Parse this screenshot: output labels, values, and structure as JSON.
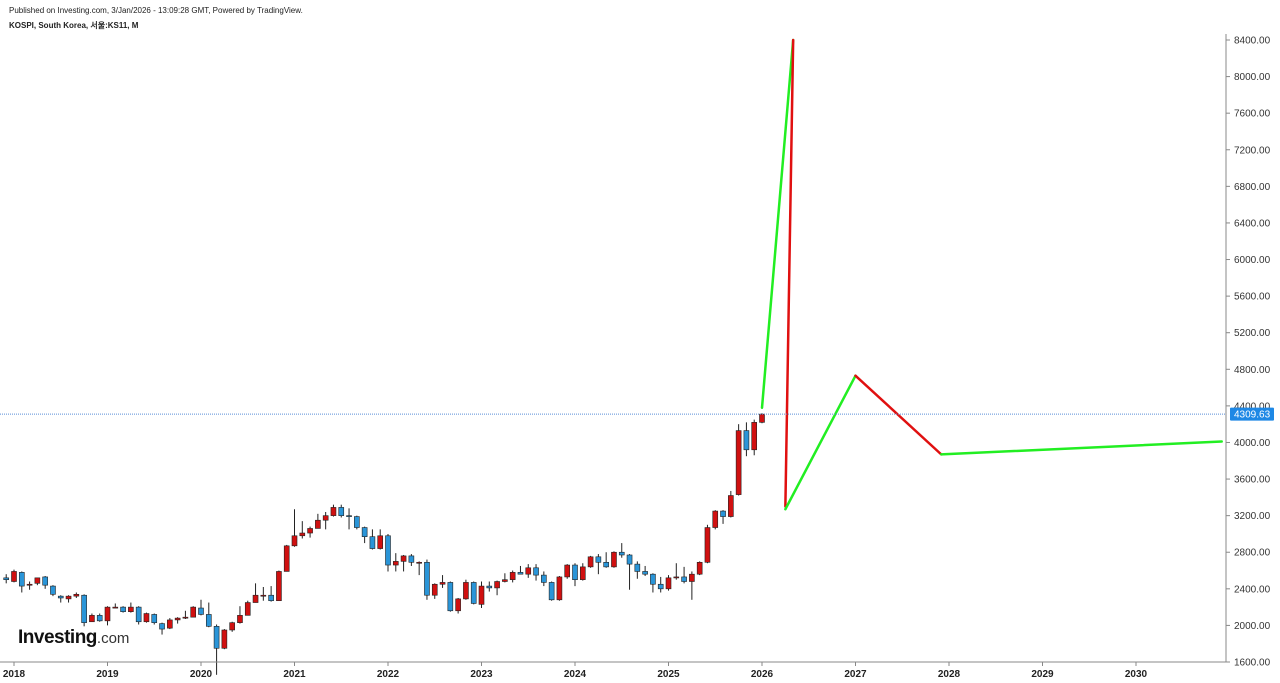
{
  "header": {
    "published": "Published on Investing.com, 3/Jan/2026 - 13:09:28 GMT, Powered by TradingView.",
    "symbol": "KOSPI, South Korea, 서울:KS11, M"
  },
  "logo": {
    "main": "Investing",
    "tld": ".com"
  },
  "colors": {
    "up": "#d01010",
    "down": "#2a95d8",
    "proj_up": "#22ee22",
    "proj_down": "#e01010",
    "last_price_bg": "#1e88e5"
  },
  "chart_data": {
    "type": "candlestick",
    "title": "KOSPI, South Korea, 서울:KS11, M",
    "interval": "M",
    "ylim": [
      1600,
      8500
    ],
    "y_ticks": [
      "1600.00",
      "2000.00",
      "2400.00",
      "2800.00",
      "3200.00",
      "3600.00",
      "4000.00",
      "4400.00",
      "4800.00",
      "5200.00",
      "5600.00",
      "6000.00",
      "6400.00",
      "6800.00",
      "7200.00",
      "7600.00",
      "8000.00",
      "8400.00"
    ],
    "x_ticks": [
      "2018",
      "2019",
      "2020",
      "2021",
      "2022",
      "2023",
      "2024",
      "2025",
      "2026",
      "2027",
      "2028",
      "2029",
      "2030"
    ],
    "last_price": "4309.63",
    "grid": false,
    "candles": [
      {
        "date": "2017-12",
        "o": 2520,
        "h": 2560,
        "l": 2460,
        "c": 2500
      },
      {
        "date": "2018-01",
        "o": 2480,
        "h": 2610,
        "l": 2470,
        "c": 2590
      },
      {
        "date": "2018-02",
        "o": 2580,
        "h": 2590,
        "l": 2360,
        "c": 2430
      },
      {
        "date": "2018-03",
        "o": 2440,
        "h": 2480,
        "l": 2390,
        "c": 2450
      },
      {
        "date": "2018-04",
        "o": 2460,
        "h": 2520,
        "l": 2440,
        "c": 2520
      },
      {
        "date": "2018-05",
        "o": 2530,
        "h": 2540,
        "l": 2400,
        "c": 2440
      },
      {
        "date": "2018-06",
        "o": 2430,
        "h": 2440,
        "l": 2320,
        "c": 2340
      },
      {
        "date": "2018-07",
        "o": 2320,
        "h": 2330,
        "l": 2250,
        "c": 2300
      },
      {
        "date": "2018-08",
        "o": 2290,
        "h": 2330,
        "l": 2250,
        "c": 2320
      },
      {
        "date": "2018-09",
        "o": 2320,
        "h": 2360,
        "l": 2300,
        "c": 2340
      },
      {
        "date": "2018-10",
        "o": 2330,
        "h": 2340,
        "l": 1990,
        "c": 2030
      },
      {
        "date": "2018-11",
        "o": 2040,
        "h": 2130,
        "l": 2040,
        "c": 2110
      },
      {
        "date": "2018-12",
        "o": 2110,
        "h": 2130,
        "l": 2040,
        "c": 2050
      },
      {
        "date": "2019-01",
        "o": 2050,
        "h": 2210,
        "l": 2000,
        "c": 2200
      },
      {
        "date": "2019-02",
        "o": 2200,
        "h": 2240,
        "l": 2190,
        "c": 2200
      },
      {
        "date": "2019-03",
        "o": 2200,
        "h": 2210,
        "l": 2140,
        "c": 2150
      },
      {
        "date": "2019-04",
        "o": 2150,
        "h": 2250,
        "l": 2140,
        "c": 2200
      },
      {
        "date": "2019-05",
        "o": 2200,
        "h": 2210,
        "l": 2010,
        "c": 2040
      },
      {
        "date": "2019-06",
        "o": 2040,
        "h": 2140,
        "l": 2030,
        "c": 2130
      },
      {
        "date": "2019-07",
        "o": 2120,
        "h": 2130,
        "l": 2010,
        "c": 2030
      },
      {
        "date": "2019-08",
        "o": 2020,
        "h": 2030,
        "l": 1900,
        "c": 1960
      },
      {
        "date": "2019-09",
        "o": 1970,
        "h": 2080,
        "l": 1960,
        "c": 2060
      },
      {
        "date": "2019-10",
        "o": 2060,
        "h": 2090,
        "l": 2020,
        "c": 2080
      },
      {
        "date": "2019-11",
        "o": 2080,
        "h": 2160,
        "l": 2070,
        "c": 2090
      },
      {
        "date": "2019-12",
        "o": 2090,
        "h": 2210,
        "l": 2090,
        "c": 2200
      },
      {
        "date": "2020-01",
        "o": 2190,
        "h": 2280,
        "l": 2110,
        "c": 2120
      },
      {
        "date": "2020-02",
        "o": 2120,
        "h": 2250,
        "l": 1980,
        "c": 1990
      },
      {
        "date": "2020-03",
        "o": 1990,
        "h": 2010,
        "l": 1460,
        "c": 1750
      },
      {
        "date": "2020-04",
        "o": 1750,
        "h": 1960,
        "l": 1740,
        "c": 1950
      },
      {
        "date": "2020-05",
        "o": 1950,
        "h": 2040,
        "l": 1930,
        "c": 2030
      },
      {
        "date": "2020-06",
        "o": 2030,
        "h": 2210,
        "l": 2020,
        "c": 2110
      },
      {
        "date": "2020-07",
        "o": 2110,
        "h": 2270,
        "l": 2110,
        "c": 2250
      },
      {
        "date": "2020-08",
        "o": 2250,
        "h": 2460,
        "l": 2250,
        "c": 2330
      },
      {
        "date": "2020-09",
        "o": 2330,
        "h": 2420,
        "l": 2270,
        "c": 2330
      },
      {
        "date": "2020-10",
        "o": 2330,
        "h": 2430,
        "l": 2260,
        "c": 2270
      },
      {
        "date": "2020-11",
        "o": 2270,
        "h": 2600,
        "l": 2270,
        "c": 2590
      },
      {
        "date": "2020-12",
        "o": 2590,
        "h": 2880,
        "l": 2590,
        "c": 2870
      },
      {
        "date": "2021-01",
        "o": 2870,
        "h": 3270,
        "l": 2860,
        "c": 2980
      },
      {
        "date": "2021-02",
        "o": 2980,
        "h": 3140,
        "l": 2950,
        "c": 3010
      },
      {
        "date": "2021-03",
        "o": 3010,
        "h": 3080,
        "l": 2960,
        "c": 3060
      },
      {
        "date": "2021-04",
        "o": 3060,
        "h": 3220,
        "l": 3060,
        "c": 3150
      },
      {
        "date": "2021-05",
        "o": 3150,
        "h": 3240,
        "l": 3050,
        "c": 3200
      },
      {
        "date": "2021-06",
        "o": 3200,
        "h": 3320,
        "l": 3190,
        "c": 3290
      },
      {
        "date": "2021-07",
        "o": 3290,
        "h": 3320,
        "l": 3180,
        "c": 3200
      },
      {
        "date": "2021-08",
        "o": 3200,
        "h": 3280,
        "l": 3050,
        "c": 3190
      },
      {
        "date": "2021-09",
        "o": 3190,
        "h": 3200,
        "l": 3050,
        "c": 3070
      },
      {
        "date": "2021-10",
        "o": 3070,
        "h": 3080,
        "l": 2900,
        "c": 2970
      },
      {
        "date": "2021-11",
        "o": 2970,
        "h": 3050,
        "l": 2830,
        "c": 2840
      },
      {
        "date": "2021-12",
        "o": 2840,
        "h": 3050,
        "l": 2830,
        "c": 2980
      },
      {
        "date": "2022-01",
        "o": 2980,
        "h": 3000,
        "l": 2590,
        "c": 2660
      },
      {
        "date": "2022-02",
        "o": 2660,
        "h": 2790,
        "l": 2590,
        "c": 2700
      },
      {
        "date": "2022-03",
        "o": 2700,
        "h": 2770,
        "l": 2590,
        "c": 2760
      },
      {
        "date": "2022-04",
        "o": 2760,
        "h": 2780,
        "l": 2650,
        "c": 2690
      },
      {
        "date": "2022-05",
        "o": 2690,
        "h": 2700,
        "l": 2550,
        "c": 2690
      },
      {
        "date": "2022-06",
        "o": 2690,
        "h": 2720,
        "l": 2280,
        "c": 2330
      },
      {
        "date": "2022-07",
        "o": 2330,
        "h": 2460,
        "l": 2290,
        "c": 2450
      },
      {
        "date": "2022-08",
        "o": 2450,
        "h": 2550,
        "l": 2410,
        "c": 2470
      },
      {
        "date": "2022-09",
        "o": 2470,
        "h": 2480,
        "l": 2150,
        "c": 2160
      },
      {
        "date": "2022-10",
        "o": 2160,
        "h": 2300,
        "l": 2130,
        "c": 2290
      },
      {
        "date": "2022-11",
        "o": 2290,
        "h": 2500,
        "l": 2280,
        "c": 2470
      },
      {
        "date": "2022-12",
        "o": 2470,
        "h": 2480,
        "l": 2230,
        "c": 2240
      },
      {
        "date": "2023-01",
        "o": 2230,
        "h": 2480,
        "l": 2190,
        "c": 2430
      },
      {
        "date": "2023-02",
        "o": 2430,
        "h": 2480,
        "l": 2370,
        "c": 2410
      },
      {
        "date": "2023-03",
        "o": 2410,
        "h": 2490,
        "l": 2330,
        "c": 2480
      },
      {
        "date": "2023-04",
        "o": 2480,
        "h": 2570,
        "l": 2470,
        "c": 2500
      },
      {
        "date": "2023-05",
        "o": 2500,
        "h": 2600,
        "l": 2470,
        "c": 2580
      },
      {
        "date": "2023-06",
        "o": 2580,
        "h": 2650,
        "l": 2560,
        "c": 2560
      },
      {
        "date": "2023-07",
        "o": 2560,
        "h": 2670,
        "l": 2520,
        "c": 2630
      },
      {
        "date": "2023-08",
        "o": 2630,
        "h": 2670,
        "l": 2490,
        "c": 2550
      },
      {
        "date": "2023-09",
        "o": 2550,
        "h": 2590,
        "l": 2430,
        "c": 2470
      },
      {
        "date": "2023-10",
        "o": 2470,
        "h": 2480,
        "l": 2270,
        "c": 2280
      },
      {
        "date": "2023-11",
        "o": 2280,
        "h": 2540,
        "l": 2270,
        "c": 2530
      },
      {
        "date": "2023-12",
        "o": 2530,
        "h": 2670,
        "l": 2510,
        "c": 2660
      },
      {
        "date": "2024-01",
        "o": 2660,
        "h": 2680,
        "l": 2430,
        "c": 2500
      },
      {
        "date": "2024-02",
        "o": 2500,
        "h": 2680,
        "l": 2490,
        "c": 2640
      },
      {
        "date": "2024-03",
        "o": 2640,
        "h": 2760,
        "l": 2630,
        "c": 2750
      },
      {
        "date": "2024-04",
        "o": 2750,
        "h": 2780,
        "l": 2560,
        "c": 2690
      },
      {
        "date": "2024-05",
        "o": 2690,
        "h": 2800,
        "l": 2630,
        "c": 2640
      },
      {
        "date": "2024-06",
        "o": 2640,
        "h": 2810,
        "l": 2630,
        "c": 2800
      },
      {
        "date": "2024-07",
        "o": 2800,
        "h": 2900,
        "l": 2740,
        "c": 2770
      },
      {
        "date": "2024-08",
        "o": 2770,
        "h": 2780,
        "l": 2390,
        "c": 2670
      },
      {
        "date": "2024-09",
        "o": 2670,
        "h": 2700,
        "l": 2510,
        "c": 2590
      },
      {
        "date": "2024-10",
        "o": 2590,
        "h": 2650,
        "l": 2540,
        "c": 2560
      },
      {
        "date": "2024-11",
        "o": 2560,
        "h": 2570,
        "l": 2360,
        "c": 2450
      },
      {
        "date": "2024-12",
        "o": 2450,
        "h": 2530,
        "l": 2360,
        "c": 2400
      },
      {
        "date": "2025-01",
        "o": 2400,
        "h": 2550,
        "l": 2380,
        "c": 2520
      },
      {
        "date": "2025-02",
        "o": 2520,
        "h": 2680,
        "l": 2500,
        "c": 2530
      },
      {
        "date": "2025-03",
        "o": 2530,
        "h": 2640,
        "l": 2460,
        "c": 2480
      },
      {
        "date": "2025-04",
        "o": 2480,
        "h": 2590,
        "l": 2280,
        "c": 2560
      },
      {
        "date": "2025-05",
        "o": 2560,
        "h": 2700,
        "l": 2550,
        "c": 2690
      },
      {
        "date": "2025-06",
        "o": 2690,
        "h": 3100,
        "l": 2680,
        "c": 3070
      },
      {
        "date": "2025-07",
        "o": 3070,
        "h": 3260,
        "l": 3050,
        "c": 3250
      },
      {
        "date": "2025-08",
        "o": 3250,
        "h": 3260,
        "l": 3110,
        "c": 3190
      },
      {
        "date": "2025-09",
        "o": 3190,
        "h": 3470,
        "l": 3180,
        "c": 3420
      },
      {
        "date": "2025-10",
        "o": 3430,
        "h": 4200,
        "l": 3420,
        "c": 4130
      },
      {
        "date": "2025-11",
        "o": 4130,
        "h": 4220,
        "l": 3850,
        "c": 3920
      },
      {
        "date": "2025-12",
        "o": 3920,
        "h": 4250,
        "l": 3860,
        "c": 4220
      },
      {
        "date": "2026-01",
        "o": 4220,
        "h": 4320,
        "l": 4210,
        "c": 4310
      }
    ],
    "projections": [
      {
        "color": "green",
        "points": [
          {
            "date": "2026-01",
            "y": 4380
          },
          {
            "date": "2026-05",
            "y": 8400
          }
        ]
      },
      {
        "color": "red",
        "points": [
          {
            "date": "2026-05",
            "y": 8400
          },
          {
            "date": "2026-04",
            "y": 3300
          }
        ]
      },
      {
        "color": "green",
        "points": [
          {
            "date": "2026-04",
            "y": 3270
          },
          {
            "date": "2027-01",
            "y": 4730
          }
        ]
      },
      {
        "color": "red",
        "points": [
          {
            "date": "2027-01",
            "y": 4730
          },
          {
            "date": "2027-12",
            "y": 3870
          }
        ]
      },
      {
        "color": "green",
        "points": [
          {
            "date": "2027-12",
            "y": 3870
          },
          {
            "date": "2030-12",
            "y": 4010
          }
        ]
      }
    ]
  }
}
